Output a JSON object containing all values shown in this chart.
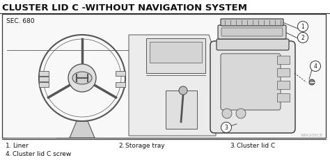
{
  "title": "CLUSTER LID C -WITHOUT NAVIGATION SYSTEM",
  "sec_label": "SEC. 680",
  "watermark": "WIA105CE",
  "items": [
    {
      "num": "1.",
      "label": "Liner"
    },
    {
      "num": "2.",
      "label": "Storage tray"
    },
    {
      "num": "3.",
      "label": "Cluster lid C"
    },
    {
      "num": "4.",
      "label": "Cluster lid C screw"
    }
  ],
  "bg_color": "#ffffff",
  "diagram_bg": "#f0f0f0",
  "line_color": "#555555",
  "dark_line": "#333333",
  "text_color": "#111111",
  "title_fontsize": 9.5,
  "label_fontsize": 6.5,
  "sec_fontsize": 6.5,
  "callout_fontsize": 5.5
}
